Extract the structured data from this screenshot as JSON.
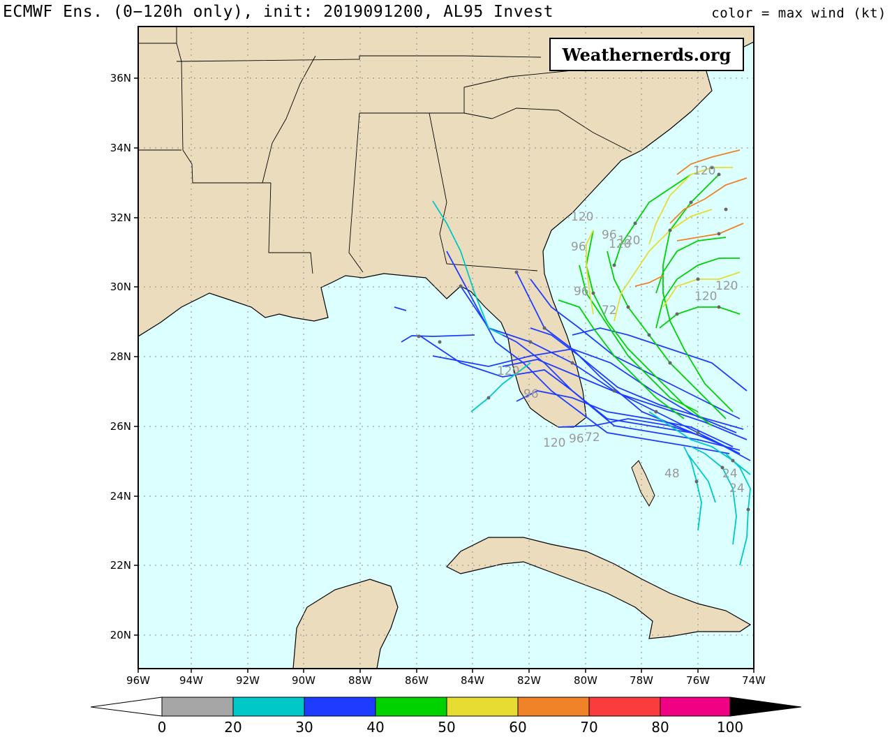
{
  "header": {
    "title": "ECMWF Ens. (0−120h only), init: 2019091200, AL95 Invest",
    "color_legend_title": "color = max wind (kt)"
  },
  "watermark": "Weathernerds.org",
  "map": {
    "lat_labels": [
      "36N",
      "34N",
      "32N",
      "30N",
      "28N",
      "26N",
      "24N",
      "22N",
      "20N"
    ],
    "lon_labels": [
      "96W",
      "94W",
      "92W",
      "90W",
      "88W",
      "86W",
      "84W",
      "82W",
      "80W",
      "78W",
      "76W",
      "74W"
    ],
    "hour_labels": [
      "120",
      "120",
      "96",
      "120",
      "96",
      "72",
      "96",
      "120",
      "120",
      "96",
      "120",
      "120",
      "120",
      "96",
      "72",
      "48",
      "24",
      "24"
    ]
  },
  "colorbar": {
    "ticks": [
      "0",
      "20",
      "30",
      "40",
      "50",
      "60",
      "70",
      "80",
      "100"
    ],
    "colors": [
      "#a6a6a6",
      "#00c8c8",
      "#1e3cff",
      "#00d200",
      "#e6dc32",
      "#f08228",
      "#fa3c3c",
      "#f00082"
    ],
    "low_color": "#ffffff",
    "high_color": "#000000"
  }
}
